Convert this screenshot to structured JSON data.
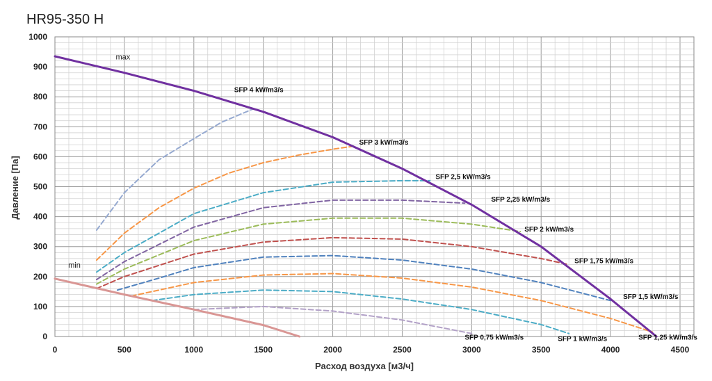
{
  "title": "HR95-350 H",
  "chart_data": {
    "type": "line",
    "title": "HR95-350 H",
    "xlabel": "Расход воздуха [м3/ч]",
    "ylabel": "Давление [Па]",
    "xlim": [
      0,
      4600
    ],
    "ylim": [
      0,
      1000
    ],
    "x_ticks": [
      0,
      500,
      1000,
      1500,
      2000,
      2500,
      3000,
      3500,
      4000,
      4500
    ],
    "y_ticks": [
      0,
      100,
      200,
      300,
      400,
      500,
      600,
      700,
      800,
      900,
      1000
    ],
    "grid": true,
    "boundary_curves": [
      {
        "name": "max",
        "color": "#7030A0",
        "x": [
          0,
          500,
          1000,
          1500,
          2000,
          2500,
          3000,
          3500,
          4000,
          4330
        ],
        "y": [
          935,
          880,
          820,
          750,
          665,
          560,
          440,
          300,
          125,
          0
        ]
      },
      {
        "name": "min",
        "color": "#D99694",
        "x": [
          0,
          500,
          1000,
          1500,
          1760
        ],
        "y": [
          193,
          140,
          90,
          38,
          0
        ]
      }
    ],
    "series": [
      {
        "name": "SFP 4 kW/m3/s",
        "label_x": 1290,
        "label_y": 815,
        "color": "#95A9D0",
        "x": [
          300,
          500,
          750,
          1000,
          1200,
          1430
        ],
        "y": [
          355,
          480,
          590,
          660,
          715,
          760
        ]
      },
      {
        "name": "SFP 3 kW/m3/s",
        "label_x": 2190,
        "label_y": 640,
        "color": "#F79646",
        "x": [
          300,
          500,
          750,
          1000,
          1250,
          1500,
          1750,
          2000,
          2150
        ],
        "y": [
          255,
          345,
          430,
          495,
          545,
          580,
          605,
          625,
          635
        ]
      },
      {
        "name": "SFP 2,5 kW/m3/s",
        "label_x": 2740,
        "label_y": 525,
        "color": "#4BACC6",
        "x": [
          300,
          500,
          1000,
          1500,
          2000,
          2500,
          2700
        ],
        "y": [
          215,
          280,
          410,
          480,
          515,
          520,
          520
        ]
      },
      {
        "name": "SFP 2,25 kW/m3/s",
        "label_x": 3140,
        "label_y": 450,
        "color": "#8064A2",
        "x": [
          300,
          500,
          1000,
          1500,
          2000,
          2500,
          2950
        ],
        "y": [
          190,
          250,
          365,
          430,
          455,
          455,
          445
        ]
      },
      {
        "name": "SFP 2 kW/m3/s",
        "label_x": 3380,
        "label_y": 350,
        "color": "#9BBB59",
        "x": [
          300,
          500,
          1000,
          1500,
          2000,
          2500,
          3000,
          3350
        ],
        "y": [
          175,
          225,
          320,
          375,
          395,
          395,
          375,
          350
        ]
      },
      {
        "name": "SFP 1,75 kW/m3/s",
        "label_x": 3740,
        "label_y": 245,
        "color": "#C0504D",
        "x": [
          300,
          500,
          1000,
          1500,
          2000,
          2500,
          3000,
          3500,
          3700
        ],
        "y": [
          160,
          200,
          275,
          315,
          330,
          325,
          300,
          260,
          240
        ]
      },
      {
        "name": "SFP 1,5 kW/m3/s",
        "label_x": 4090,
        "label_y": 125,
        "color": "#4F81BD",
        "x": [
          450,
          750,
          1000,
          1500,
          2000,
          2500,
          3000,
          3500,
          4000
        ],
        "y": [
          155,
          195,
          230,
          265,
          270,
          255,
          225,
          180,
          120
        ]
      },
      {
        "name": "SFP 1,25 kW/m3/s",
        "label_x": 4200,
        "label_y": -10,
        "color": "#F79646",
        "x": [
          550,
          1000,
          1500,
          2000,
          2500,
          3000,
          3500,
          4000,
          4300
        ],
        "y": [
          135,
          180,
          205,
          210,
          195,
          165,
          120,
          60,
          15
        ]
      },
      {
        "name": "SFP 1 kW/m3/s",
        "label_x": 3620,
        "label_y": -15,
        "color": "#4BACC6",
        "x": [
          700,
          1000,
          1500,
          2000,
          2500,
          3000,
          3500,
          3700
        ],
        "y": [
          120,
          140,
          155,
          150,
          125,
          90,
          40,
          10
        ]
      },
      {
        "name": "SFP 0,75 kW/m3/s",
        "label_x": 2950,
        "label_y": -10,
        "color": "#B2A1C7",
        "x": [
          1000,
          1500,
          2000,
          2500,
          3000
        ],
        "y": [
          90,
          100,
          85,
          55,
          10
        ]
      }
    ],
    "annotations": [
      {
        "text": "max",
        "x": 490,
        "y": 925
      },
      {
        "text": "min",
        "x": 140,
        "y": 230
      }
    ]
  }
}
